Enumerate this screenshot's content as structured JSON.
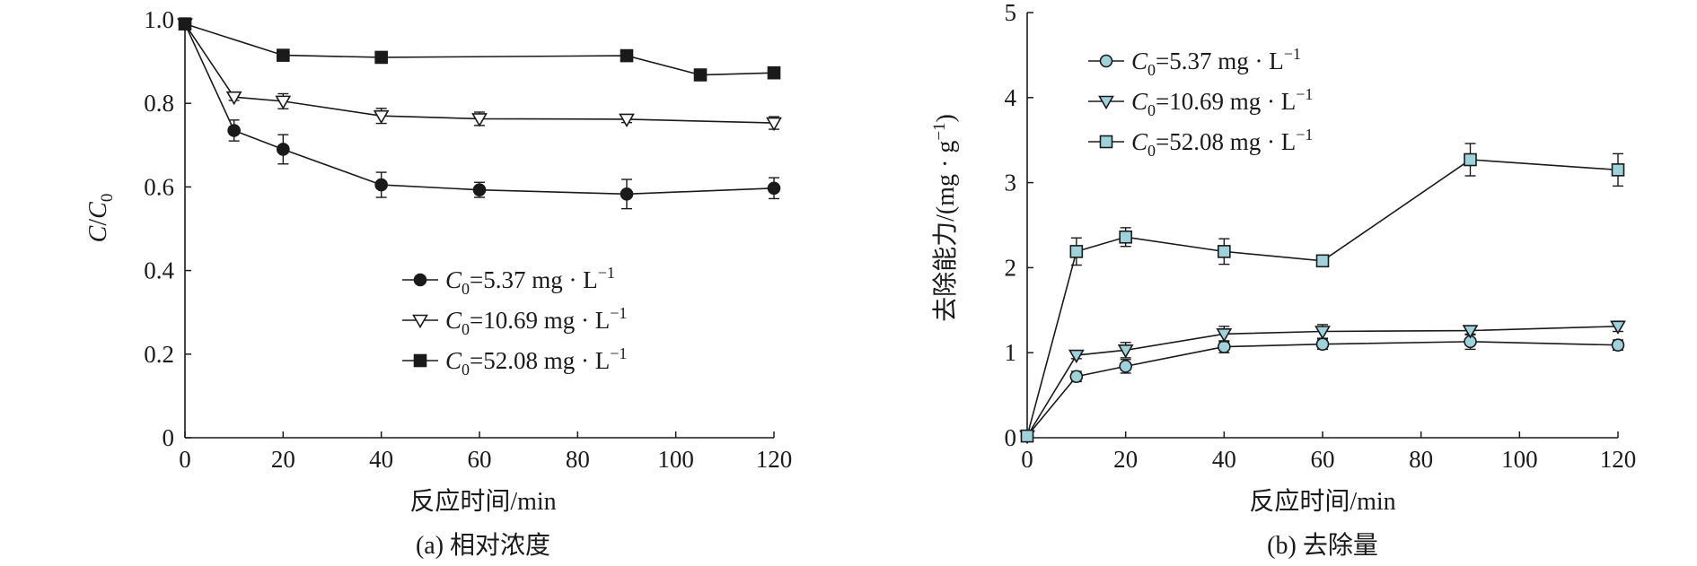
{
  "chart_data": [
    {
      "type": "line",
      "caption": "(a) 相对浓度",
      "xlabel": "反应时间/min",
      "ylabel": {
        "italic_1": "C",
        "slash": "/",
        "italic_2": "C",
        "sub": "0"
      },
      "xlim": [
        0,
        120
      ],
      "ylim": [
        0,
        1.0
      ],
      "xticks": [
        "0",
        "20",
        "40",
        "60",
        "80",
        "100",
        "120"
      ],
      "yticks": [
        "0",
        "0.2",
        "0.4",
        "0.6",
        "0.8",
        "1.0"
      ],
      "legend_position": "lower-center",
      "series": [
        {
          "name": "C0=5.37 mg · L−1",
          "label": {
            "italic": "C",
            "sub": "0",
            "main": "=5.37 mg · L",
            "sup": "−1"
          },
          "marker": "filled-circle",
          "x": [
            0,
            10,
            20,
            40,
            60,
            90,
            120
          ],
          "y": [
            0.99,
            0.735,
            0.69,
            0.605,
            0.593,
            0.583,
            0.597
          ],
          "err": [
            0.012,
            0.025,
            0.035,
            0.03,
            0.018,
            0.035,
            0.025
          ]
        },
        {
          "name": "C0=10.69 mg · L−1",
          "label": {
            "italic": "C",
            "sub": "0",
            "main": "=10.69 mg · L",
            "sup": "−1"
          },
          "marker": "open-triangle-down",
          "x": [
            0,
            10,
            20,
            40,
            60,
            90,
            120
          ],
          "y": [
            0.99,
            0.815,
            0.805,
            0.77,
            0.763,
            0.762,
            0.753
          ],
          "err": [
            0.01,
            0.008,
            0.018,
            0.018,
            0.016,
            0.008,
            0.015
          ]
        },
        {
          "name": "C0=52.08 mg · L−1",
          "label": {
            "italic": "C",
            "sub": "0",
            "main": "=52.08 mg · L",
            "sup": "−1"
          },
          "marker": "filled-square",
          "x": [
            0,
            20,
            40,
            90,
            105,
            120
          ],
          "y": [
            0.99,
            0.915,
            0.91,
            0.914,
            0.868,
            0.873
          ],
          "err": [
            0.01,
            0.013,
            0.008,
            0.008,
            0.008,
            0.01
          ]
        }
      ]
    },
    {
      "type": "line",
      "caption": "(b) 去除量",
      "xlabel": "反应时间/min",
      "ylabel": {
        "main": "去除能力/(mg · g",
        "sup": "−1",
        "end": ")"
      },
      "xlim": [
        0,
        120
      ],
      "ylim": [
        0,
        5
      ],
      "xticks": [
        "0",
        "20",
        "40",
        "60",
        "80",
        "100",
        "120"
      ],
      "yticks": [
        "0",
        "1",
        "2",
        "3",
        "4",
        "5"
      ],
      "legend_position": "top-left",
      "colors": {
        "marker_fill": "#9fd3dc",
        "line": "#1a1a1a"
      },
      "series": [
        {
          "name": "C0=5.37 mg · L−1",
          "label": {
            "italic": "C",
            "sub": "0",
            "main": "=5.37 mg · L",
            "sup": "−1"
          },
          "marker": "circle",
          "x": [
            0,
            10,
            20,
            40,
            60,
            90,
            120
          ],
          "y": [
            0.02,
            0.72,
            0.84,
            1.07,
            1.1,
            1.13,
            1.09
          ],
          "err": [
            0.02,
            0.06,
            0.08,
            0.07,
            0.06,
            0.09,
            0.06
          ]
        },
        {
          "name": "C0=10.69 mg · L−1",
          "label": {
            "italic": "C",
            "sub": "0",
            "main": "=10.69 mg · L",
            "sup": "−1"
          },
          "marker": "triangle-down",
          "x": [
            0,
            10,
            20,
            40,
            60,
            90,
            120
          ],
          "y": [
            0.02,
            0.97,
            1.03,
            1.22,
            1.25,
            1.26,
            1.31
          ],
          "err": [
            0.02,
            0.04,
            0.09,
            0.09,
            0.08,
            0.05,
            0.06
          ]
        },
        {
          "name": "C0=52.08 mg · L−1",
          "label": {
            "italic": "C",
            "sub": "0",
            "main": "=52.08 mg · L",
            "sup": "−1"
          },
          "marker": "square",
          "x": [
            0,
            10,
            20,
            40,
            60,
            90,
            120
          ],
          "y": [
            0.02,
            2.19,
            2.36,
            2.19,
            2.08,
            3.27,
            3.15
          ],
          "err": [
            0.02,
            0.16,
            0.11,
            0.15,
            0.04,
            0.19,
            0.19
          ]
        }
      ]
    }
  ]
}
